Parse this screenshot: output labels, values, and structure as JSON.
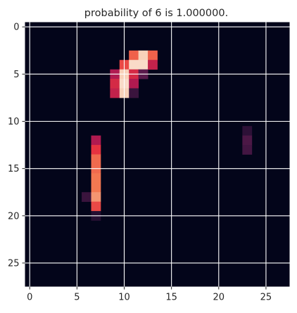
{
  "chart_data": {
    "type": "heatmap",
    "title": "probability of  6 is  1.000000.",
    "xlabel": "",
    "ylabel": "",
    "grid": true,
    "colormap": "rocket",
    "value_range": [
      0,
      1
    ],
    "rows": 28,
    "cols": 28,
    "x_ticks": [
      0,
      5,
      10,
      15,
      20,
      25
    ],
    "y_ticks": [
      0,
      5,
      10,
      15,
      20,
      25
    ],
    "x_tick_labels": [
      "0",
      "5",
      "10",
      "15",
      "20",
      "25"
    ],
    "y_tick_labels": [
      "0",
      "5",
      "10",
      "15",
      "20",
      "25"
    ],
    "nonzero_cells": [
      {
        "row": 3,
        "col": 11,
        "value": 0.7
      },
      {
        "row": 3,
        "col": 12,
        "value": 0.95
      },
      {
        "row": 3,
        "col": 13,
        "value": 0.7
      },
      {
        "row": 4,
        "col": 10,
        "value": 0.65
      },
      {
        "row": 4,
        "col": 11,
        "value": 0.97
      },
      {
        "row": 4,
        "col": 12,
        "value": 0.97
      },
      {
        "row": 4,
        "col": 13,
        "value": 0.5
      },
      {
        "row": 5,
        "col": 9,
        "value": 0.45
      },
      {
        "row": 5,
        "col": 10,
        "value": 0.95
      },
      {
        "row": 5,
        "col": 11,
        "value": 0.55
      },
      {
        "row": 5,
        "col": 12,
        "value": 0.25
      },
      {
        "row": 6,
        "col": 9,
        "value": 0.55
      },
      {
        "row": 6,
        "col": 10,
        "value": 0.97
      },
      {
        "row": 6,
        "col": 11,
        "value": 0.45
      },
      {
        "row": 7,
        "col": 9,
        "value": 0.5
      },
      {
        "row": 7,
        "col": 10,
        "value": 0.95
      },
      {
        "row": 7,
        "col": 11,
        "value": 0.18
      },
      {
        "row": 11,
        "col": 23,
        "value": 0.15
      },
      {
        "row": 12,
        "col": 7,
        "value": 0.45
      },
      {
        "row": 12,
        "col": 23,
        "value": 0.22
      },
      {
        "row": 13,
        "col": 7,
        "value": 0.6
      },
      {
        "row": 13,
        "col": 23,
        "value": 0.2
      },
      {
        "row": 14,
        "col": 7,
        "value": 0.72
      },
      {
        "row": 15,
        "col": 7,
        "value": 0.72
      },
      {
        "row": 16,
        "col": 7,
        "value": 0.75
      },
      {
        "row": 17,
        "col": 7,
        "value": 0.75
      },
      {
        "row": 18,
        "col": 6,
        "value": 0.18
      },
      {
        "row": 18,
        "col": 7,
        "value": 0.82
      },
      {
        "row": 19,
        "col": 7,
        "value": 0.65
      },
      {
        "row": 20,
        "col": 7,
        "value": 0.12
      }
    ]
  }
}
